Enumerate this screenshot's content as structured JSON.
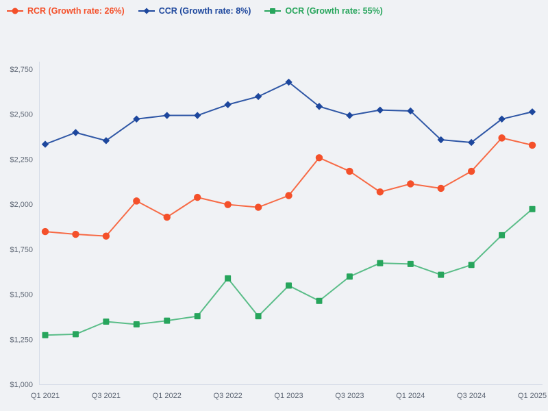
{
  "page": {
    "background": "#f0f2f5"
  },
  "legend": {
    "items": [
      {
        "label": "RCR (Growth rate: 26%)",
        "color": "#f4502a",
        "marker": "circle"
      },
      {
        "label": "CCR (Growth rate: 8%)",
        "color": "#1d479d",
        "marker": "diamond"
      },
      {
        "label": "OCR (Growth rate: 55%)",
        "color": "#27a55c",
        "marker": "square"
      }
    ]
  },
  "chart_data": {
    "type": "line",
    "title": "",
    "x": [
      "Q1 2021",
      "Q2 2021",
      "Q3 2021",
      "Q4 2021",
      "Q1 2022",
      "Q2 2022",
      "Q3 2022",
      "Q4 2022",
      "Q1 2023",
      "Q2 2023",
      "Q3 2023",
      "Q4 2023",
      "Q1 2024",
      "Q2 2024",
      "Q3 2024",
      "Q4 2024",
      "Q1 2025"
    ],
    "x_tick_labels_shown": [
      "Q1 2021",
      "Q3 2021",
      "Q1 2022",
      "Q3 2022",
      "Q1 2023",
      "Q3 2023",
      "Q1 2024",
      "Q3 2024",
      "Q1 2025"
    ],
    "series": [
      {
        "id": "rcr",
        "name": "RCR",
        "growth_rate": "26%",
        "marker": "circle",
        "color": "#f4502a",
        "line_color": "#f76a45",
        "values": [
          1850,
          1835,
          1825,
          2020,
          1930,
          2040,
          2000,
          1985,
          2050,
          2260,
          2185,
          2070,
          2115,
          2090,
          2185,
          2370,
          2330
        ]
      },
      {
        "id": "ccr",
        "name": "CCR",
        "growth_rate": "8%",
        "marker": "diamond",
        "color": "#1d479d",
        "line_color": "#2e56a5",
        "values": [
          2335,
          2400,
          2355,
          2475,
          2495,
          2495,
          2555,
          2600,
          2680,
          2545,
          2495,
          2525,
          2520,
          2360,
          2345,
          2475,
          2515
        ]
      },
      {
        "id": "ocr",
        "name": "OCR",
        "growth_rate": "55%",
        "marker": "square",
        "color": "#27a55c",
        "line_color": "#5abd88",
        "values": [
          1275,
          1280,
          1350,
          1335,
          1355,
          1380,
          1590,
          1380,
          1550,
          1465,
          1600,
          1675,
          1670,
          1610,
          1665,
          1830,
          1975
        ]
      }
    ],
    "ylim": [
      1000,
      2750
    ],
    "y_ticks": [
      1000,
      1250,
      1500,
      1750,
      2000,
      2250,
      2500,
      2750
    ],
    "y_tick_prefix": "$",
    "xlabel": "",
    "ylabel": "",
    "grid": false,
    "legend_position": "top-left",
    "colors": {
      "axis": "#d6dce8",
      "tick_text": "#5b6472"
    }
  }
}
